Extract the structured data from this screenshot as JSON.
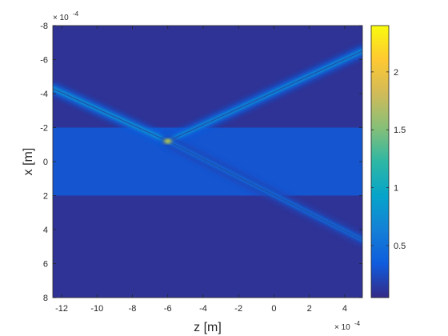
{
  "chart_data": {
    "type": "heatmap",
    "colormap": "parula",
    "xlabel": "z [m]",
    "ylabel": "x [m]",
    "x_exponent_label": "× 10",
    "x_exponent_power": "-4",
    "y_exponent_label": "× 10",
    "y_exponent_power": "-4",
    "xlim": [
      -12.5,
      5
    ],
    "ylim": [
      -8,
      8
    ],
    "y_reversed": true,
    "x_ticks": [
      -12,
      -10,
      -8,
      -6,
      -4,
      -2,
      0,
      2,
      4
    ],
    "x_tick_labels": [
      "-12",
      "-10",
      "-8",
      "-6",
      "-4",
      "-2",
      "0",
      "2",
      "4"
    ],
    "y_ticks": [
      -8,
      -6,
      -4,
      -2,
      0,
      2,
      4,
      6,
      8
    ],
    "y_tick_labels": [
      "-8",
      "-6",
      "-4",
      "-2",
      "0",
      "2",
      "4",
      "6",
      "8"
    ],
    "colorbar": {
      "range": [
        0.05,
        2.4
      ],
      "ticks": [
        0.5,
        1,
        1.5,
        2
      ],
      "tick_labels": [
        "0.5",
        "1",
        "1.5",
        "2"
      ]
    },
    "background": {
      "outer_value": 0.1,
      "layer_value": 0.3,
      "layer_x_range": [
        -2,
        2
      ]
    },
    "beams": [
      {
        "name": "incident",
        "z": [
          -12.5,
          -6
        ],
        "x": [
          -4.3,
          -1.2
        ],
        "peak": 1.05
      },
      {
        "name": "reflected",
        "z": [
          -6,
          5
        ],
        "x": [
          -1.2,
          -6.5
        ],
        "peak": 0.95
      },
      {
        "name": "transmitted",
        "z": [
          -6,
          5
        ],
        "x": [
          -1.2,
          4.6
        ],
        "peak": 0.6
      }
    ],
    "hotspot": {
      "z": -6,
      "x": -1.2,
      "value": 2.35
    }
  }
}
